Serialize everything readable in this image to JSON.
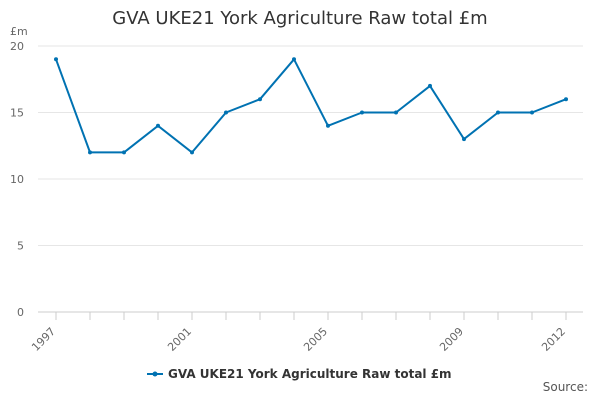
{
  "chart_data": {
    "type": "line",
    "title": "GVA UKE21 York Agriculture Raw total £m",
    "ylabel": "£m",
    "xlabel": "",
    "x": [
      1997,
      1998,
      1999,
      2000,
      2001,
      2002,
      2003,
      2004,
      2005,
      2006,
      2007,
      2008,
      2009,
      2010,
      2011,
      2012
    ],
    "x_tick_labels": [
      "1997",
      "2001",
      "2005",
      "2009",
      "2012"
    ],
    "x_tick_values": [
      1997,
      2001,
      2005,
      2009,
      2012
    ],
    "y_ticks": [
      0,
      5,
      10,
      15,
      20
    ],
    "ylim": [
      0,
      20
    ],
    "grid": true,
    "legend_position": "bottom",
    "series": [
      {
        "name": "GVA UKE21 York Agriculture Raw total £m",
        "color": "#0072b2",
        "values": [
          19,
          12,
          12,
          14,
          12,
          15,
          16,
          19,
          14,
          15,
          15,
          17,
          13,
          15,
          15,
          16
        ]
      }
    ]
  },
  "source_label": "Source:"
}
